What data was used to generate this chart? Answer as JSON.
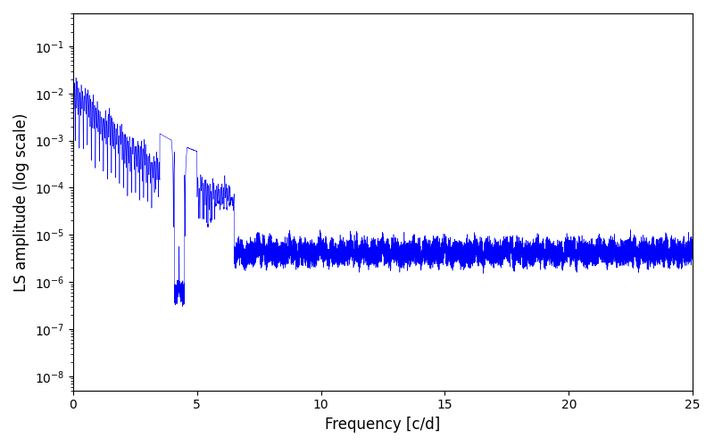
{
  "xlabel": "Frequency [c/d]",
  "ylabel": "LS amplitude (log scale)",
  "line_color": "#0000ff",
  "xlim": [
    0,
    25
  ],
  "ylim": [
    5e-09,
    0.5
  ],
  "yscale": "log",
  "figsize": [
    8.0,
    5.0
  ],
  "dpi": 100,
  "background_color": "#ffffff",
  "xticks": [
    0,
    5,
    10,
    15,
    20,
    25
  ],
  "linewidth": 0.4
}
